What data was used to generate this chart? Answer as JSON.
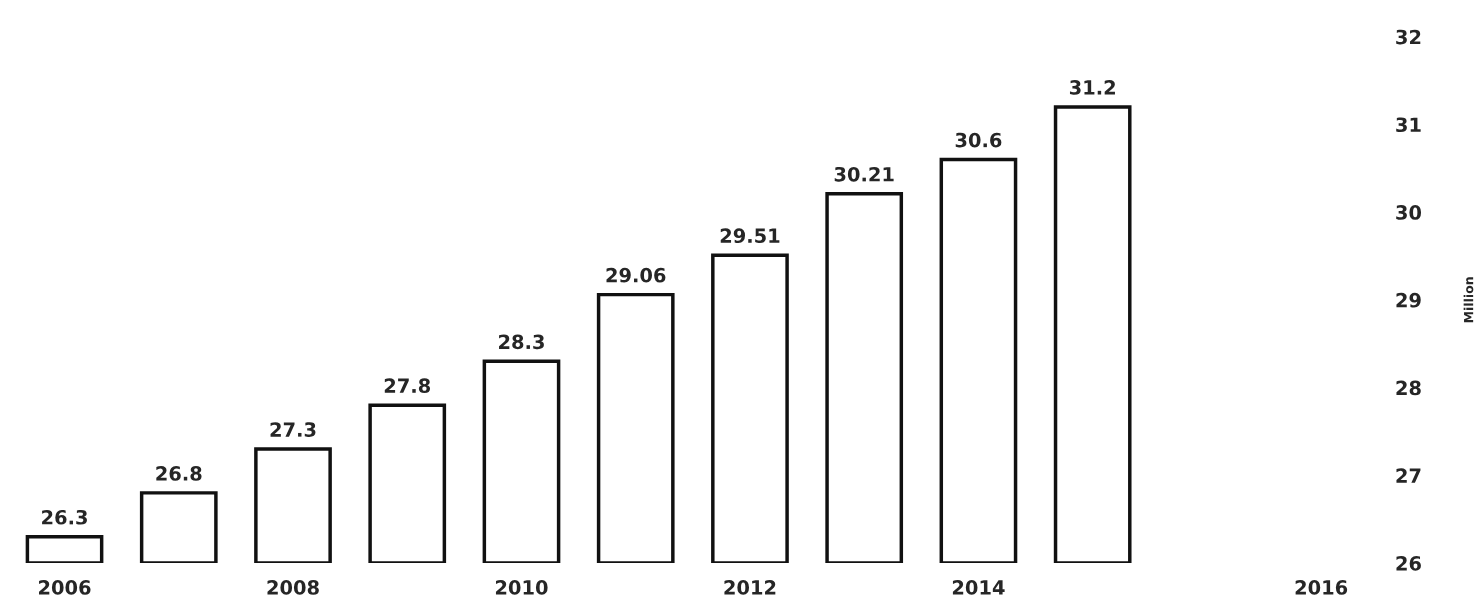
{
  "chart_data": {
    "type": "bar",
    "categories": [
      "2006",
      null,
      "2008",
      null,
      "2010",
      null,
      "2012",
      null,
      "2014",
      null,
      null,
      "2016"
    ],
    "values": [
      26.3,
      26.8,
      27.3,
      27.8,
      28.3,
      29.06,
      29.51,
      30.21,
      30.6,
      31.2,
      null,
      null
    ],
    "color": "#ffffff",
    "ylabel": "Million",
    "ylim": [
      26,
      32
    ],
    "yticks": [
      26,
      27,
      28,
      29,
      30,
      31,
      32
    ],
    "data_labels": true,
    "grid": false,
    "legend": false
  }
}
